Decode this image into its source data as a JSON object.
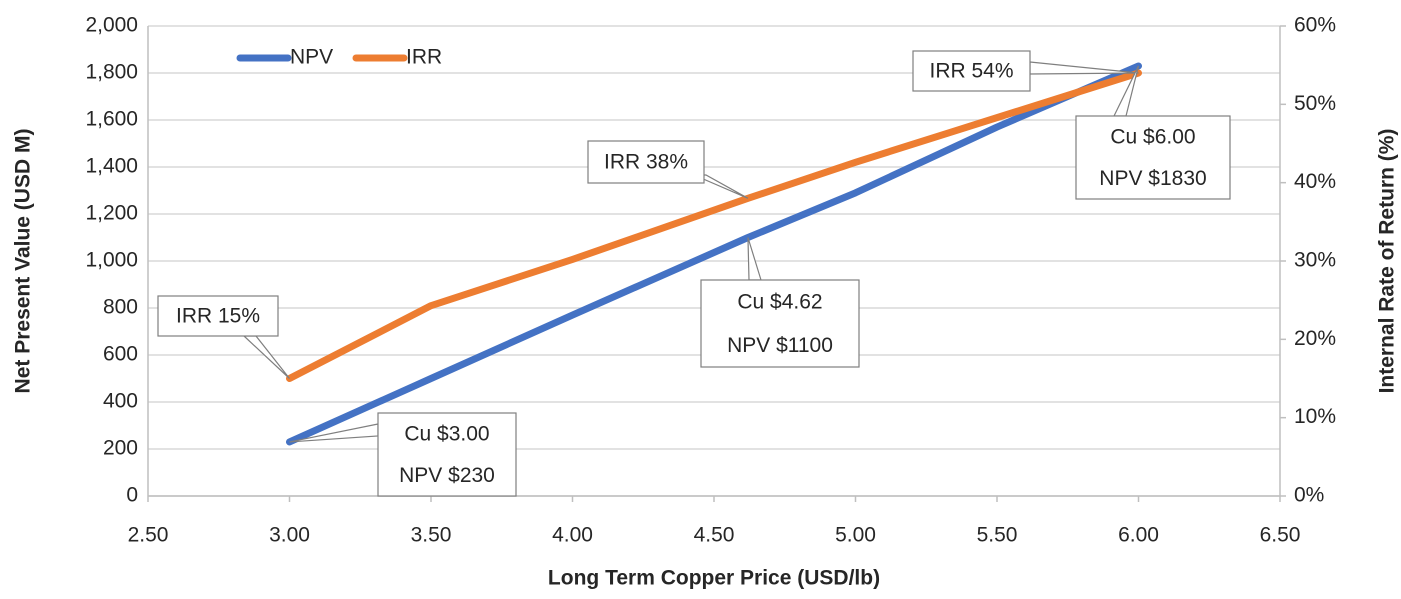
{
  "chart_data": {
    "type": "line",
    "x_label": "Long Term Copper Price (USD/lb)",
    "y_label": "Net Present Value (USD M)",
    "y2_label": "Internal Rate of Return (%)",
    "x": [
      3.0,
      3.5,
      4.0,
      4.62,
      5.0,
      5.5,
      6.0
    ],
    "series": [
      {
        "name": "NPV",
        "color": "#4472c4",
        "values": [
          230,
          500,
          770,
          1100,
          1290,
          1570,
          1830
        ]
      },
      {
        "name": "IRR",
        "color": "#ed7d31",
        "axis": "y2",
        "values": [
          15,
          24.3,
          30.2,
          38,
          42.6,
          48.3,
          54
        ]
      }
    ],
    "xlim": [
      2.5,
      6.5
    ],
    "xticks": [
      {
        "value": 2.5,
        "label": "2.50"
      },
      {
        "value": 3,
        "label": "3.00"
      },
      {
        "value": 3.5,
        "label": "3.50"
      },
      {
        "value": 4,
        "label": "4.00"
      },
      {
        "value": 4.5,
        "label": "4.50"
      },
      {
        "value": 5,
        "label": "5.00"
      },
      {
        "value": 5.5,
        "label": "5.50"
      },
      {
        "value": 6,
        "label": "6.00"
      },
      {
        "value": 6.5,
        "label": "6.50"
      }
    ],
    "ylim": [
      0,
      2000
    ],
    "yticks": [
      0,
      200,
      400,
      600,
      800,
      {
        "value": 1000,
        "label": "1,000"
      },
      {
        "value": 1200,
        "label": "1,200"
      },
      {
        "value": 1400,
        "label": "1,400"
      },
      {
        "value": 1600,
        "label": "1,600"
      },
      {
        "value": 1800,
        "label": "1,800"
      },
      {
        "value": 2000,
        "label": "2,000"
      }
    ],
    "y2lim": [
      0,
      60
    ],
    "y2ticks": [
      {
        "value": 0,
        "label": "0%"
      },
      {
        "value": 10,
        "label": "10%"
      },
      {
        "value": 20,
        "label": "20%"
      },
      {
        "value": 30,
        "label": "30%"
      },
      {
        "value": 40,
        "label": "40%"
      },
      {
        "value": 50,
        "label": "50%"
      },
      {
        "value": 60,
        "label": "60%"
      }
    ],
    "grid": true,
    "legend": "top-left",
    "annotations": [
      {
        "lines": [
          "IRR 15%"
        ]
      },
      {
        "lines": [
          "Cu $3.00",
          "NPV $230"
        ]
      },
      {
        "lines": [
          "IRR 38%"
        ]
      },
      {
        "lines": [
          "Cu $4.62",
          "NPV $1100"
        ]
      },
      {
        "lines": [
          "IRR 54%"
        ]
      },
      {
        "lines": [
          "Cu $6.00",
          "NPV $1830"
        ]
      }
    ]
  }
}
